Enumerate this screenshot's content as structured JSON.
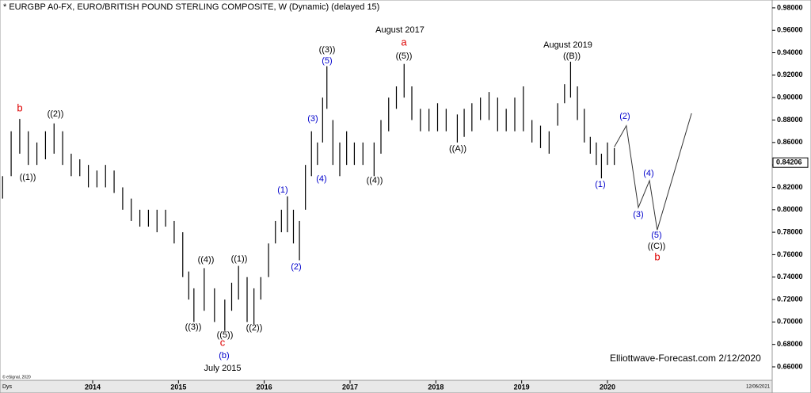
{
  "chart_data": {
    "type": "ohlc",
    "title": "* EURGBP A0-FX, EURO/BRITISH POUND STERLING COMPOSITE, W (Dynamic) (delayed 15)",
    "footer": "Elliottwave-Forecast.com 2/12/2020",
    "copyright": "© eSignal, 2020",
    "period": "Dys",
    "date_stamp": "12/06/2021",
    "bar_color": "#000000",
    "x": [
      2012.95,
      2013.05,
      2013.15,
      2013.25,
      2013.35,
      2013.45,
      2013.55,
      2013.65,
      2013.75,
      2013.85,
      2013.95,
      2014.05,
      2014.15,
      2014.25,
      2014.35,
      2014.45,
      2014.55,
      2014.65,
      2014.75,
      2014.85,
      2014.95,
      2015.05,
      2015.12,
      2015.18,
      2015.3,
      2015.42,
      2015.54,
      2015.62,
      2015.7,
      2015.8,
      2015.88,
      2015.96,
      2016.05,
      2016.13,
      2016.2,
      2016.27,
      2016.34,
      2016.41,
      2016.48,
      2016.55,
      2016.62,
      2016.68,
      2016.73,
      2016.8,
      2016.88,
      2016.96,
      2017.05,
      2017.15,
      2017.28,
      2017.36,
      2017.45,
      2017.54,
      2017.63,
      2017.72,
      2017.82,
      2017.92,
      2018.02,
      2018.12,
      2018.25,
      2018.33,
      2018.42,
      2018.52,
      2018.62,
      2018.72,
      2018.82,
      2018.92,
      2019.02,
      2019.12,
      2019.22,
      2019.32,
      2019.42,
      2019.5,
      2019.57,
      2019.65,
      2019.73,
      2019.8,
      2019.87,
      2019.93,
      2020.0,
      2020.08
    ],
    "high": [
      0.83,
      0.87,
      0.881,
      0.87,
      0.86,
      0.87,
      0.877,
      0.87,
      0.85,
      0.845,
      0.84,
      0.835,
      0.84,
      0.835,
      0.82,
      0.81,
      0.8,
      0.8,
      0.8,
      0.8,
      0.79,
      0.78,
      0.745,
      0.73,
      0.748,
      0.73,
      0.72,
      0.735,
      0.75,
      0.74,
      0.73,
      0.74,
      0.77,
      0.79,
      0.8,
      0.812,
      0.8,
      0.79,
      0.84,
      0.87,
      0.86,
      0.9,
      0.928,
      0.88,
      0.86,
      0.87,
      0.86,
      0.86,
      0.86,
      0.88,
      0.9,
      0.91,
      0.93,
      0.91,
      0.89,
      0.89,
      0.895,
      0.89,
      0.885,
      0.89,
      0.895,
      0.9,
      0.905,
      0.9,
      0.89,
      0.9,
      0.91,
      0.88,
      0.875,
      0.87,
      0.895,
      0.912,
      0.932,
      0.91,
      0.89,
      0.865,
      0.86,
      0.85,
      0.86,
      0.855
    ],
    "low": [
      0.81,
      0.83,
      0.85,
      0.84,
      0.84,
      0.845,
      0.85,
      0.84,
      0.83,
      0.83,
      0.82,
      0.82,
      0.82,
      0.815,
      0.8,
      0.79,
      0.785,
      0.785,
      0.78,
      0.785,
      0.77,
      0.74,
      0.72,
      0.7,
      0.71,
      0.7,
      0.692,
      0.71,
      0.72,
      0.7,
      0.698,
      0.72,
      0.74,
      0.77,
      0.78,
      0.78,
      0.77,
      0.755,
      0.8,
      0.83,
      0.84,
      0.86,
      0.89,
      0.84,
      0.83,
      0.84,
      0.84,
      0.84,
      0.83,
      0.85,
      0.87,
      0.89,
      0.9,
      0.88,
      0.87,
      0.87,
      0.87,
      0.87,
      0.86,
      0.865,
      0.87,
      0.88,
      0.88,
      0.87,
      0.87,
      0.87,
      0.87,
      0.86,
      0.855,
      0.85,
      0.875,
      0.895,
      0.9,
      0.88,
      0.86,
      0.85,
      0.84,
      0.828,
      0.84,
      0.84
    ],
    "projection": {
      "color": "#333333",
      "x": [
        2020.08,
        2020.22,
        2020.36,
        2020.49,
        2020.58,
        2020.98
      ],
      "values": [
        0.856,
        0.875,
        0.802,
        0.826,
        0.782,
        0.886
      ]
    },
    "last_price": 0.84206,
    "annotations": [
      {
        "text": "b",
        "color": "#dd0000"
      },
      {
        "text": "((2))",
        "color": "#000000"
      },
      {
        "text": "((1))",
        "color": "#000000"
      },
      {
        "text": "((3))",
        "color": "#000000"
      },
      {
        "text": "((4))",
        "color": "#000000"
      },
      {
        "text": "((5))",
        "color": "#000000"
      },
      {
        "text": "c",
        "color": "#dd0000"
      },
      {
        "text": "(b)",
        "color": "#0000cc"
      },
      {
        "text": "July 2015",
        "color": "#000000"
      },
      {
        "text": "((1))",
        "color": "#000000"
      },
      {
        "text": "((2))",
        "color": "#000000"
      },
      {
        "text": "(1)",
        "color": "#0000cc"
      },
      {
        "text": "(2)",
        "color": "#0000cc"
      },
      {
        "text": "(3)",
        "color": "#0000cc"
      },
      {
        "text": "(4)",
        "color": "#0000cc"
      },
      {
        "text": "(5)",
        "color": "#0000cc"
      },
      {
        "text": "((3))",
        "color": "#000000"
      },
      {
        "text": "((4))",
        "color": "#000000"
      },
      {
        "text": "August 2017",
        "color": "#000000"
      },
      {
        "text": "a",
        "color": "#dd0000"
      },
      {
        "text": "((5))",
        "color": "#000000"
      },
      {
        "text": "((A))",
        "color": "#000000"
      },
      {
        "text": "August 2019",
        "color": "#000000"
      },
      {
        "text": "((B))",
        "color": "#000000"
      },
      {
        "text": "(1)",
        "color": "#0000cc"
      },
      {
        "text": "(2)",
        "color": "#0000cc"
      },
      {
        "text": "(3)",
        "color": "#0000cc"
      },
      {
        "text": "(4)",
        "color": "#0000cc"
      },
      {
        "text": "(5)",
        "color": "#0000cc"
      },
      {
        "text": "((C))",
        "color": "#000000"
      },
      {
        "text": "b",
        "color": "#dd0000"
      }
    ],
    "xlim": [
      2012.92,
      2021.92
    ],
    "xticks": [
      2014,
      2015,
      2016,
      2017,
      2018,
      2019,
      2020
    ],
    "ylim": [
      0.648,
      0.987
    ],
    "yticks": [
      {
        "value": 0.66,
        "label": "0.66000"
      },
      {
        "value": 0.68,
        "label": "0.68000"
      },
      {
        "value": 0.7,
        "label": "0.70000"
      },
      {
        "value": 0.72,
        "label": "0.72000"
      },
      {
        "value": 0.74,
        "label": "0.74000"
      },
      {
        "value": 0.76,
        "label": "0.76000"
      },
      {
        "value": 0.78,
        "label": "0.78000"
      },
      {
        "value": 0.8,
        "label": "0.80000"
      },
      {
        "value": 0.82,
        "label": "0.82000"
      },
      {
        "value": 0.84,
        "label": "0.84000"
      },
      {
        "value": 0.86,
        "label": "0.86000"
      },
      {
        "value": 0.88,
        "label": "0.88000"
      },
      {
        "value": 0.9,
        "label": "0.90000"
      },
      {
        "value": 0.92,
        "label": "0.92000"
      },
      {
        "value": 0.94,
        "label": "0.94000"
      },
      {
        "value": 0.96,
        "label": "0.96000"
      },
      {
        "value": 0.98,
        "label": "0.98000"
      }
    ]
  }
}
